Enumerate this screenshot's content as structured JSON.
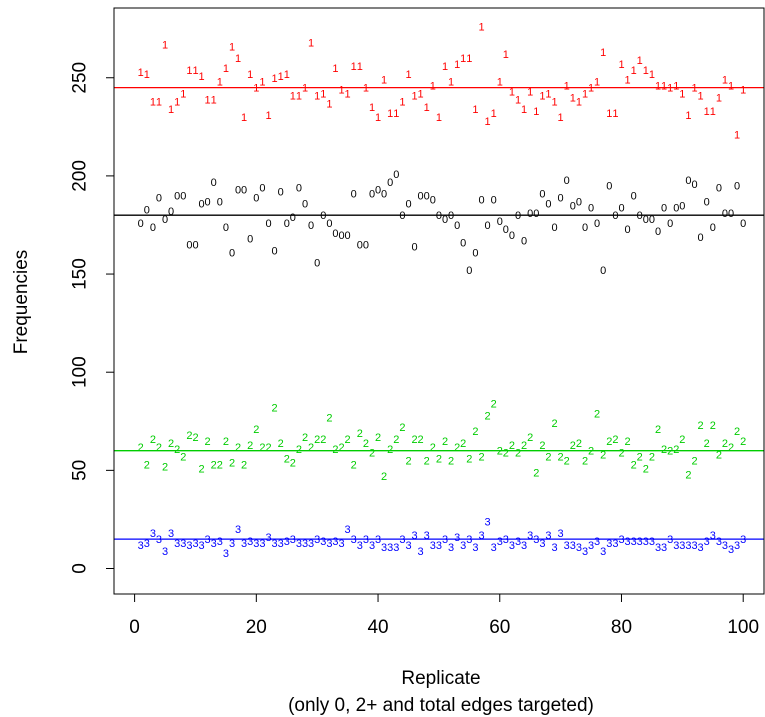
{
  "chart_data": {
    "type": "scatter",
    "xlabel": "Replicate",
    "xlabel_sub": "(only 0, 2+ and total edges targeted)",
    "ylabel": "Frequencies",
    "xlim": [
      1,
      100
    ],
    "ylim": [
      -3,
      286
    ],
    "x_ticks": [
      0,
      20,
      40,
      60,
      80,
      100
    ],
    "y_ticks": [
      0,
      50,
      100,
      150,
      200,
      250
    ],
    "grid": false,
    "legend": "none",
    "x": [
      1,
      2,
      3,
      4,
      5,
      6,
      7,
      8,
      9,
      10,
      11,
      12,
      13,
      14,
      15,
      16,
      17,
      18,
      19,
      20,
      21,
      22,
      23,
      24,
      25,
      26,
      27,
      28,
      29,
      30,
      31,
      32,
      33,
      34,
      35,
      36,
      37,
      38,
      39,
      40,
      41,
      42,
      43,
      44,
      45,
      46,
      47,
      48,
      49,
      50,
      51,
      52,
      53,
      54,
      55,
      56,
      57,
      58,
      59,
      60,
      61,
      62,
      63,
      64,
      65,
      66,
      67,
      68,
      69,
      70,
      71,
      72,
      73,
      74,
      75,
      76,
      77,
      78,
      79,
      80,
      81,
      82,
      83,
      84,
      85,
      86,
      87,
      88,
      89,
      90,
      91,
      92,
      93,
      94,
      95,
      96,
      97,
      98,
      99,
      100
    ],
    "series": [
      {
        "marker": "1",
        "color": "#ff0000",
        "target": 245,
        "values": [
          253,
          252,
          238,
          238,
          267,
          234,
          238,
          242,
          254,
          254,
          251,
          239,
          239,
          248,
          255,
          266,
          260,
          230,
          252,
          245,
          248,
          231,
          250,
          251,
          252,
          241,
          241,
          245,
          268,
          241,
          242,
          237,
          255,
          244,
          242,
          256,
          256,
          245,
          235,
          230,
          249,
          232,
          232,
          238,
          252,
          241,
          242,
          235,
          246,
          230,
          256,
          248,
          257,
          260,
          260,
          234,
          276,
          228,
          232,
          248,
          262,
          243,
          239,
          234,
          243,
          233,
          241,
          242,
          238,
          230,
          246,
          240,
          238,
          242,
          245,
          248,
          263,
          232,
          232,
          257,
          249,
          254,
          259,
          254,
          252,
          246,
          246,
          245,
          246,
          242,
          231,
          245,
          241,
          233,
          233,
          240,
          249,
          246,
          221,
          244
        ]
      },
      {
        "marker": "0",
        "color": "#000000",
        "target": 180,
        "values": [
          176,
          183,
          174,
          189,
          178,
          182,
          190,
          190,
          165,
          165,
          186,
          187,
          197,
          187,
          174,
          161,
          193,
          193,
          168,
          189,
          194,
          176,
          162,
          192,
          176,
          179,
          194,
          186,
          175,
          156,
          180,
          176,
          171,
          170,
          170,
          191,
          165,
          165,
          191,
          193,
          191,
          197,
          201,
          180,
          186,
          164,
          190,
          190,
          188,
          180,
          178,
          180,
          175,
          166,
          152,
          161,
          188,
          175,
          188,
          177,
          173,
          170,
          180,
          167,
          181,
          181,
          191,
          186,
          174,
          189,
          198,
          185,
          187,
          174,
          184,
          176,
          152,
          195,
          180,
          184,
          173,
          190,
          180,
          178,
          178,
          172,
          184,
          176,
          184,
          185,
          198,
          196,
          169,
          187,
          174,
          194,
          181,
          181,
          195,
          176
        ]
      },
      {
        "marker": "2",
        "color": "#00cd00",
        "target": 60,
        "values": [
          62,
          53,
          66,
          62,
          52,
          64,
          61,
          57,
          68,
          67,
          51,
          65,
          53,
          53,
          65,
          54,
          62,
          53,
          63,
          71,
          62,
          62,
          82,
          64,
          56,
          54,
          61,
          67,
          62,
          66,
          66,
          77,
          61,
          62,
          66,
          53,
          69,
          64,
          59,
          67,
          47,
          61,
          66,
          72,
          55,
          66,
          66,
          55,
          62,
          56,
          65,
          55,
          62,
          64,
          56,
          70,
          57,
          78,
          84,
          60,
          59,
          63,
          59,
          63,
          67,
          49,
          63,
          57,
          74,
          57,
          55,
          63,
          64,
          55,
          60,
          79,
          58,
          65,
          66,
          59,
          65,
          53,
          57,
          51,
          57,
          71,
          61,
          60,
          61,
          66,
          48,
          55,
          73,
          64,
          73,
          58,
          64,
          62,
          70,
          65
        ]
      },
      {
        "marker": "3",
        "color": "#0000ff",
        "target": 15,
        "values": [
          12,
          13,
          18,
          15,
          9,
          18,
          13,
          13,
          12,
          13,
          12,
          15,
          13,
          14,
          8,
          13,
          20,
          13,
          14,
          13,
          13,
          16,
          13,
          13,
          14,
          15,
          13,
          13,
          13,
          15,
          14,
          13,
          14,
          13,
          20,
          15,
          12,
          15,
          12,
          15,
          11,
          11,
          11,
          15,
          12,
          17,
          9,
          17,
          12,
          12,
          15,
          11,
          16,
          12,
          15,
          11,
          17,
          24,
          11,
          14,
          15,
          12,
          14,
          12,
          17,
          15,
          13,
          17,
          11,
          18,
          12,
          12,
          11,
          9,
          12,
          14,
          9,
          13,
          13,
          15,
          14,
          14,
          14,
          14,
          14,
          11,
          11,
          15,
          12,
          12,
          12,
          12,
          11,
          14,
          17,
          14,
          12,
          10,
          12,
          15
        ]
      }
    ]
  }
}
